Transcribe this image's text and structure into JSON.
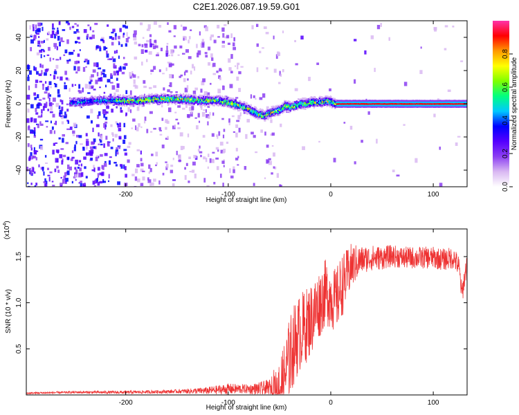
{
  "title": "C2E1.2026.087.19.59.G01",
  "chart_data": [
    {
      "type": "heatmap",
      "title": "C2E1.2026.087.19.59.G01",
      "xlabel": "Height of straight line (km)",
      "ylabel": "Frequency (Hz)",
      "xlim": [
        -297,
        133
      ],
      "ylim": [
        -50,
        50
      ],
      "x_ticks": [
        -200,
        -100,
        0,
        100
      ],
      "y_ticks": [
        -40,
        -20,
        0,
        20,
        40
      ],
      "x_tick_labels": [
        "-200",
        "-100",
        "0",
        "100"
      ],
      "y_tick_labels": [
        "-40",
        "-20",
        "0",
        "20",
        "40"
      ],
      "ridge_centerline": {
        "x": [
          -250,
          -230,
          -210,
          -190,
          -170,
          -150,
          -130,
          -110,
          -95,
          -85,
          -78,
          -72,
          -65,
          -58,
          -52,
          -48,
          -45,
          -40,
          -35,
          -30,
          -25,
          -20,
          -15,
          -10,
          -5,
          0,
          5,
          10,
          20,
          40,
          70,
          100,
          133
        ],
        "y": [
          1,
          2,
          2,
          2,
          3,
          3,
          2,
          2,
          0,
          -2,
          -4,
          -6,
          -7,
          -5,
          -4,
          -3,
          -1,
          -2,
          -1,
          0,
          0,
          1,
          1,
          1,
          2,
          1,
          0,
          0,
          0,
          0,
          0,
          0,
          0
        ]
      },
      "colorbar": {
        "label": "Normalized spectral amplitude",
        "range": [
          0,
          1
        ],
        "ticks": [
          0.0,
          0.2,
          0.4,
          0.6,
          0.8
        ],
        "tick_labels": [
          "0.0",
          "0.2",
          "0.4",
          "0.6",
          "0.8"
        ],
        "colors": [
          "#ffffff",
          "#d9b8f2",
          "#8c3ff2",
          "#5500ff",
          "#0000ff",
          "#00c8ff",
          "#00ff80",
          "#80ff00",
          "#ffff00",
          "#ff9900",
          "#ff0000",
          "#ff33aa"
        ]
      }
    },
    {
      "type": "line",
      "xlabel": "Height of straight line (km)",
      "ylabel": "SNR (10 * v/v)",
      "y_multiplier_base": "(x10",
      "y_multiplier_exp": "4",
      "y_multiplier_close": ")",
      "xlim": [
        -297,
        133
      ],
      "ylim": [
        0,
        1.8
      ],
      "x_ticks": [
        -200,
        -100,
        0,
        100
      ],
      "y_ticks": [
        0.5,
        1.0,
        1.5
      ],
      "x_tick_labels": [
        "-200",
        "-100",
        "0",
        "100"
      ],
      "y_tick_labels": [
        "0.5",
        "1.0",
        "1.5"
      ],
      "line_color": "#ee3333",
      "envelope": {
        "x": [
          -297,
          -250,
          -200,
          -150,
          -120,
          -100,
          -90,
          -80,
          -70,
          -60,
          -50,
          -45,
          -40,
          -35,
          -30,
          -25,
          -20,
          -15,
          -10,
          -5,
          0,
          5,
          10,
          15,
          20,
          25,
          30,
          40,
          50,
          60,
          70,
          80,
          90,
          100,
          110,
          120,
          125,
          128,
          130,
          133
        ],
        "y": [
          0.02,
          0.03,
          0.03,
          0.04,
          0.05,
          0.07,
          0.07,
          0.07,
          0.07,
          0.08,
          0.1,
          0.25,
          0.45,
          0.62,
          0.72,
          0.78,
          0.85,
          0.95,
          1.05,
          1.15,
          1.1,
          1.05,
          1.2,
          1.3,
          1.42,
          1.45,
          1.48,
          1.5,
          1.5,
          1.52,
          1.5,
          1.5,
          1.5,
          1.5,
          1.48,
          1.5,
          1.4,
          1.1,
          1.25,
          1.45
        ]
      },
      "noise": {
        "x": [
          -297,
          -150,
          -120,
          -100,
          -80,
          -60,
          -50,
          -40,
          -20,
          0,
          10,
          30,
          60,
          120,
          133
        ],
        "amplitude": [
          0.01,
          0.02,
          0.04,
          0.06,
          0.05,
          0.1,
          0.35,
          0.45,
          0.4,
          0.35,
          0.35,
          0.15,
          0.12,
          0.12,
          0.12
        ]
      }
    }
  ]
}
